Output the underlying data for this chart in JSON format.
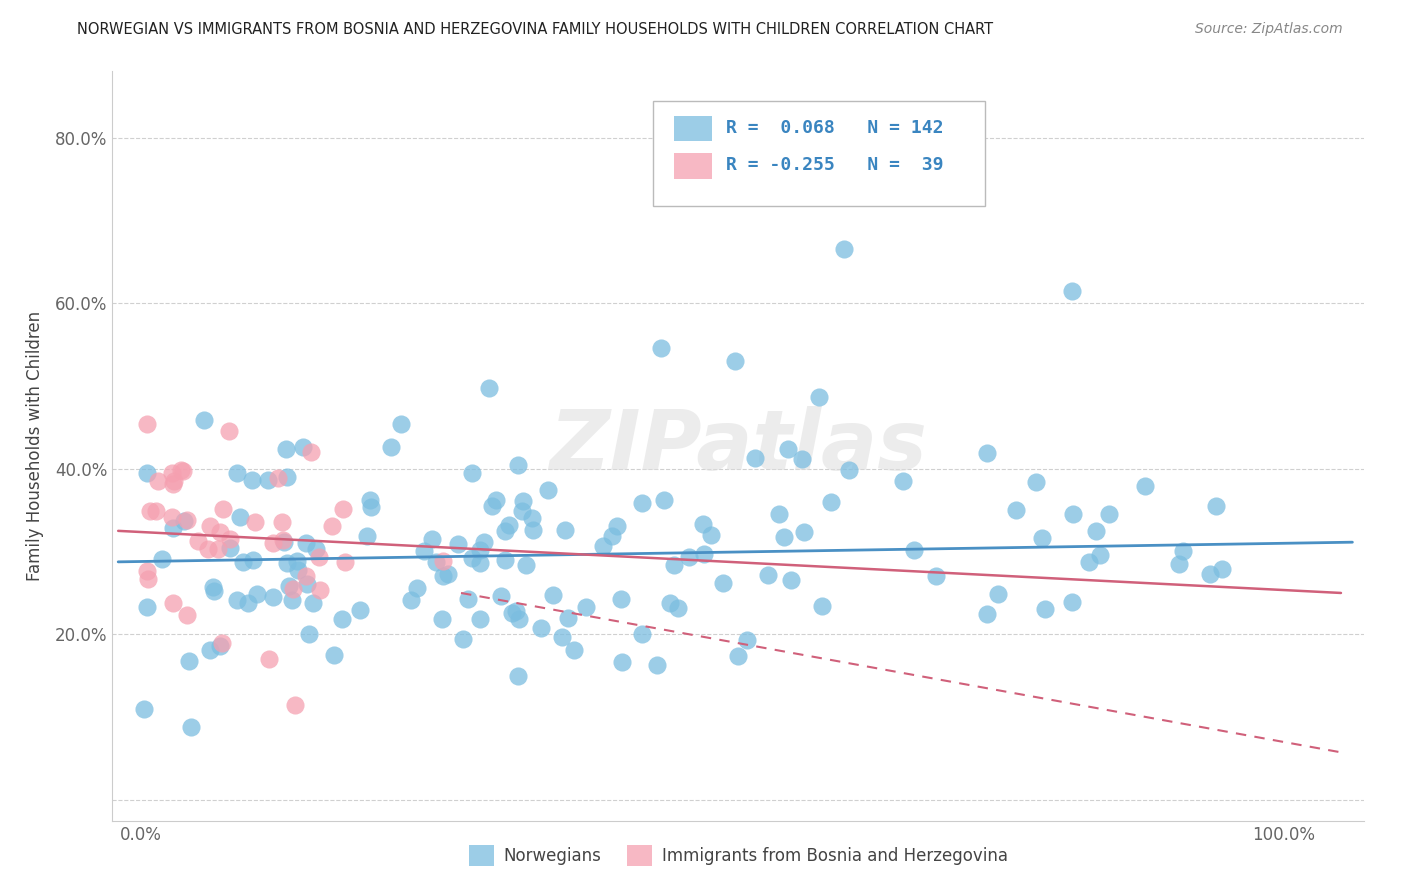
{
  "title": "NORWEGIAN VS IMMIGRANTS FROM BOSNIA AND HERZEGOVINA FAMILY HOUSEHOLDS WITH CHILDREN CORRELATION CHART",
  "source": "Source: ZipAtlas.com",
  "ylabel": "Family Households with Children",
  "blue_color": "#7bbde0",
  "pink_color": "#f5a0b0",
  "blue_line_color": "#4a90c4",
  "pink_line_color": "#d0607a",
  "watermark": "ZIPatlas",
  "blue_intercept": 0.288,
  "blue_slope": 0.022,
  "pink_intercept": 0.32,
  "pink_slope": -0.25,
  "seed": 77,
  "n_blue": 142,
  "n_pink": 39
}
